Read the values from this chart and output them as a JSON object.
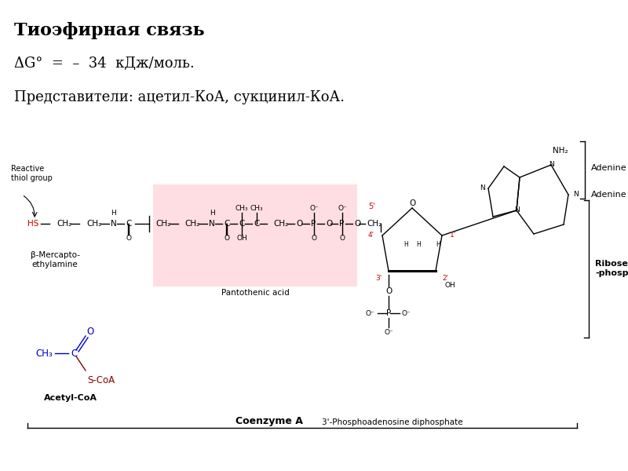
{
  "title": "Тиоэфирная связь",
  "line1": "ΔG°  =  –  34  кДж/моль.",
  "line2": "Представители: ацетил-КоА, сукцинил-КоА.",
  "bg_color": "#ffffff",
  "title_fontsize": 16,
  "body_fontsize": 13,
  "black": "#000000",
  "blue": "#0000cc",
  "red": "#cc0000",
  "dark_red": "#8b0000",
  "pink_color": "#ffb6c1"
}
